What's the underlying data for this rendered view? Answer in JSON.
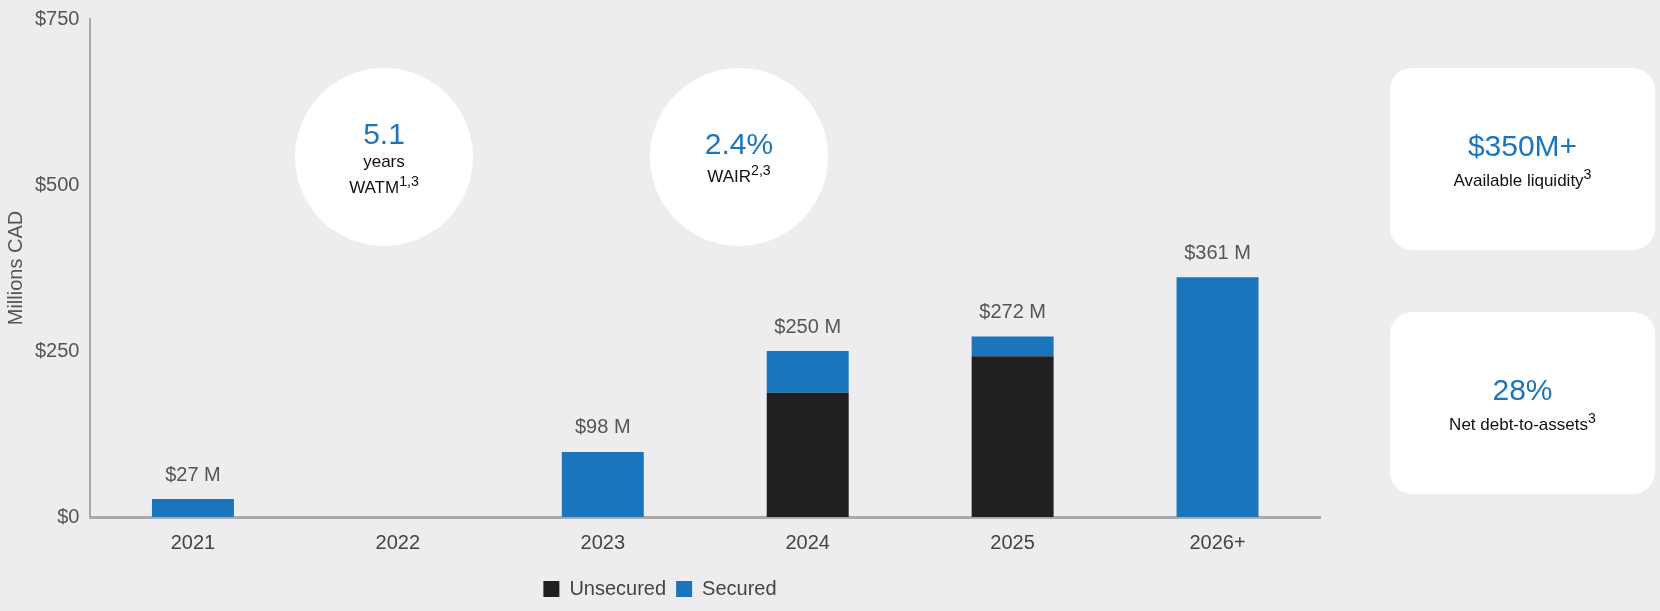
{
  "chart_data": {
    "type": "bar",
    "stacked": true,
    "ylabel": "Millions CAD",
    "categories": [
      "2021",
      "2022",
      "2023",
      "2024",
      "2025",
      "2026+"
    ],
    "series": [
      {
        "name": "Unsecured",
        "color": "#221f22",
        "values": [
          0,
          0,
          0,
          187,
          242,
          0
        ]
      },
      {
        "name": "Secured",
        "color": "#1b75bc",
        "values": [
          27,
          0,
          98,
          63,
          30,
          361
        ]
      }
    ],
    "totals": [
      "$27 M",
      null,
      "$98 M",
      "$250 M",
      "$272 M",
      "$361 M"
    ],
    "ylim": [
      0,
      750
    ],
    "yticks": [
      {
        "value": 0,
        "label": "$0"
      },
      {
        "value": 250,
        "label": "$250"
      },
      {
        "value": 500,
        "label": "$500"
      },
      {
        "value": 750,
        "label": "$750"
      }
    ],
    "grid": false,
    "legend": "bottom",
    "annotations": [
      "5.1",
      "years",
      "WATM$^{1,3}$",
      "2.4%",
      "WAIR$^{2,3}$",
      "$350M+",
      "Available liquidity$^{3}$",
      "28%",
      "Net debt-to-assets$^{3}$"
    ]
  }
}
